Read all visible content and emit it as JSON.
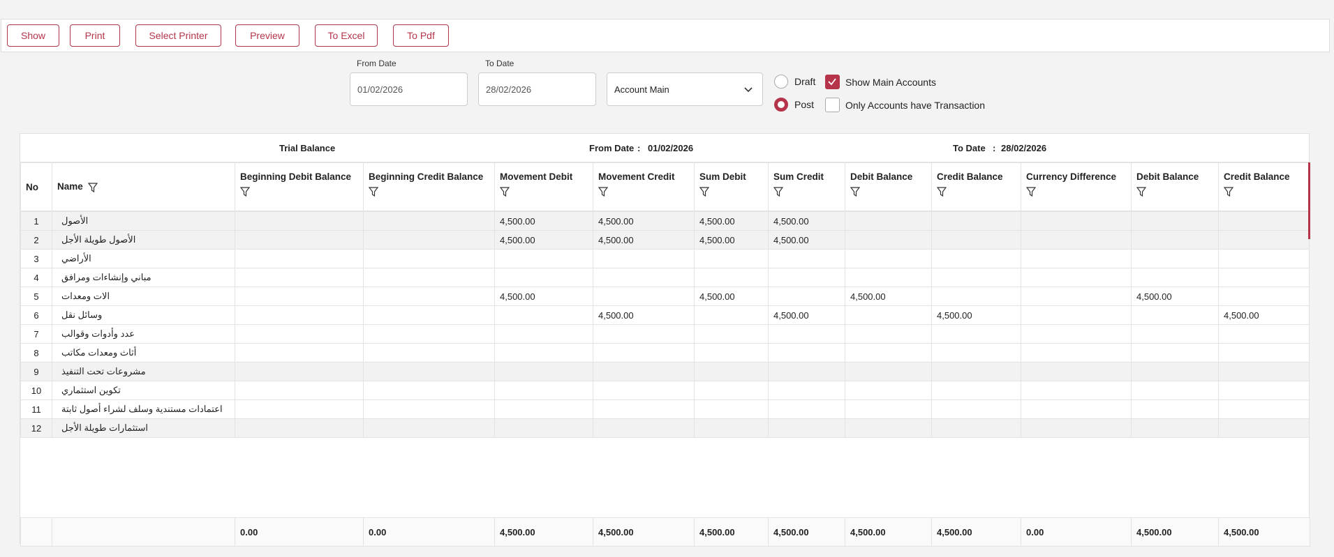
{
  "toolbar": {
    "buttons": [
      "Show",
      "Print",
      "Select Printer",
      "Preview",
      "To Excel",
      "To Pdf"
    ]
  },
  "filters": {
    "from_date": {
      "label": "From Date",
      "value": "01/02/2026"
    },
    "to_date": {
      "label": "To Date",
      "value": "28/02/2026"
    },
    "account": "Account Main",
    "radios": [
      {
        "label": "Draft",
        "selected": false
      },
      {
        "label": "Post",
        "selected": true
      }
    ],
    "checkboxes": [
      {
        "label": "Show Main Accounts",
        "checked": true
      },
      {
        "label": "Only Accounts have Transaction",
        "checked": false
      }
    ]
  },
  "report": {
    "title": "Trial Balance",
    "from_label": "From Date",
    "from_sep": ":",
    "from_value": "01/02/2026",
    "to_label": "To Date",
    "to_sep": ":",
    "to_value": "28/02/2026"
  },
  "table": {
    "columns": [
      "No",
      "Name",
      "Beginning Debit Balance",
      "Beginning Credit Balance",
      "Movement Debit",
      "Movement Credit",
      "Sum Debit",
      "Sum Credit",
      "Debit Balance",
      "Credit Balance",
      "Currency Difference",
      "Debit Balance",
      "Credit Balance"
    ],
    "rows": [
      {
        "no": 1,
        "name": "الأصول",
        "values": [
          null,
          null,
          "4,500.00",
          "4,500.00",
          "4,500.00",
          "4,500.00",
          null,
          null,
          null,
          null,
          null
        ]
      },
      {
        "no": 2,
        "name": "الأصول طويلة الأجل",
        "values": [
          null,
          null,
          "4,500.00",
          "4,500.00",
          "4,500.00",
          "4,500.00",
          null,
          null,
          null,
          null,
          null
        ]
      },
      {
        "no": 3,
        "name": "الأراضي",
        "values": [
          null,
          null,
          null,
          null,
          null,
          null,
          null,
          null,
          null,
          null,
          null
        ]
      },
      {
        "no": 4,
        "name": "مباني وإنشاءات ومرافق",
        "values": [
          null,
          null,
          null,
          null,
          null,
          null,
          null,
          null,
          null,
          null,
          null
        ]
      },
      {
        "no": 5,
        "name": "الات ومعدات",
        "values": [
          null,
          null,
          "4,500.00",
          null,
          "4,500.00",
          null,
          "4,500.00",
          null,
          null,
          "4,500.00",
          null
        ]
      },
      {
        "no": 6,
        "name": "وسائل نقل",
        "values": [
          null,
          null,
          null,
          "4,500.00",
          null,
          "4,500.00",
          null,
          "4,500.00",
          null,
          null,
          "4,500.00"
        ]
      },
      {
        "no": 7,
        "name": "عدد وأدوات وقوالب",
        "values": [
          null,
          null,
          null,
          null,
          null,
          null,
          null,
          null,
          null,
          null,
          null
        ]
      },
      {
        "no": 8,
        "name": "أثاث ومعدات مكاتب",
        "values": [
          null,
          null,
          null,
          null,
          null,
          null,
          null,
          null,
          null,
          null,
          null
        ]
      },
      {
        "no": 9,
        "name": "مشروعات تحت التنفيذ",
        "values": [
          null,
          null,
          null,
          null,
          null,
          null,
          null,
          null,
          null,
          null,
          null
        ]
      },
      {
        "no": 10,
        "name": "تكوين استثماري",
        "values": [
          null,
          null,
          null,
          null,
          null,
          null,
          null,
          null,
          null,
          null,
          null
        ]
      },
      {
        "no": 11,
        "name": "اعتمادات مستندية وسلف لشراء أصول ثابتة",
        "values": [
          null,
          null,
          null,
          null,
          null,
          null,
          null,
          null,
          null,
          null,
          null
        ]
      },
      {
        "no": 12,
        "name": "استثمارات طويلة الأجل",
        "values": [
          null,
          null,
          null,
          null,
          null,
          null,
          null,
          null,
          null,
          null,
          null
        ]
      }
    ],
    "totals": [
      "0.00",
      "0.00",
      "4,500.00",
      "4,500.00",
      "4,500.00",
      "4,500.00",
      "4,500.00",
      "4,500.00",
      "0.00",
      "4,500.00",
      "4,500.00"
    ]
  }
}
